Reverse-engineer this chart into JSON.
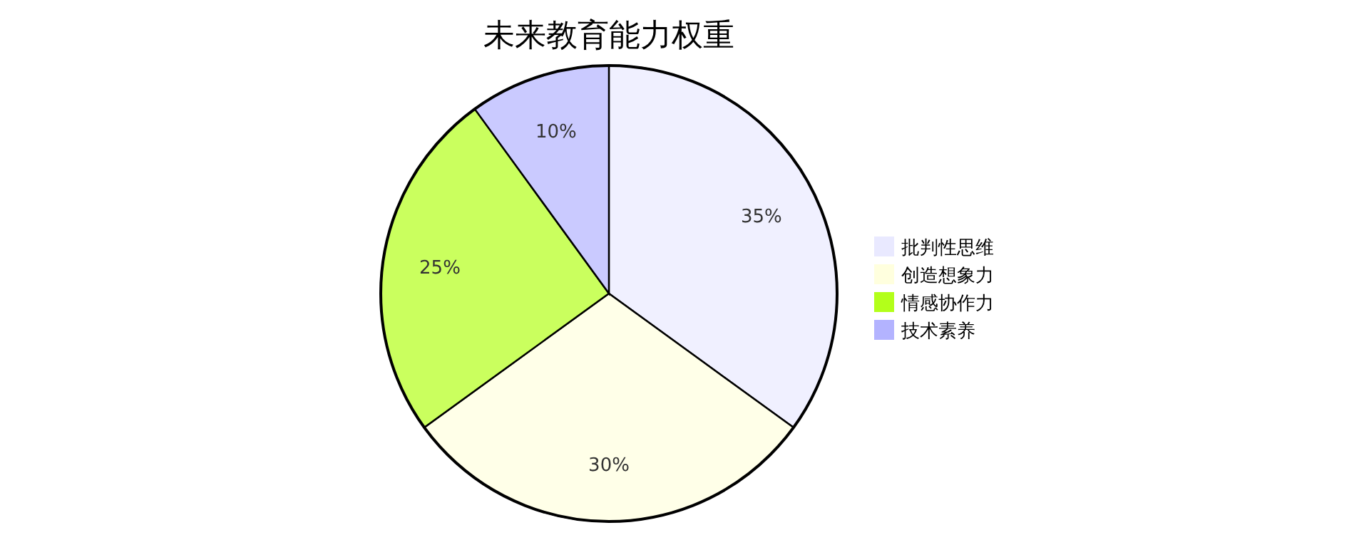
{
  "chart_data": {
    "type": "pie",
    "title": "未来教育能力权重",
    "categories": [
      "批判性思维",
      "创造想象力",
      "情感协作力",
      "技术素养"
    ],
    "values": [
      35,
      30,
      25,
      10
    ],
    "value_labels": [
      "35%",
      "30%",
      "25%",
      "10%"
    ],
    "colors": [
      "#e9e9ff",
      "#ffffde",
      "#b3ff1a",
      "#b3b3ff"
    ],
    "legend": "right"
  }
}
